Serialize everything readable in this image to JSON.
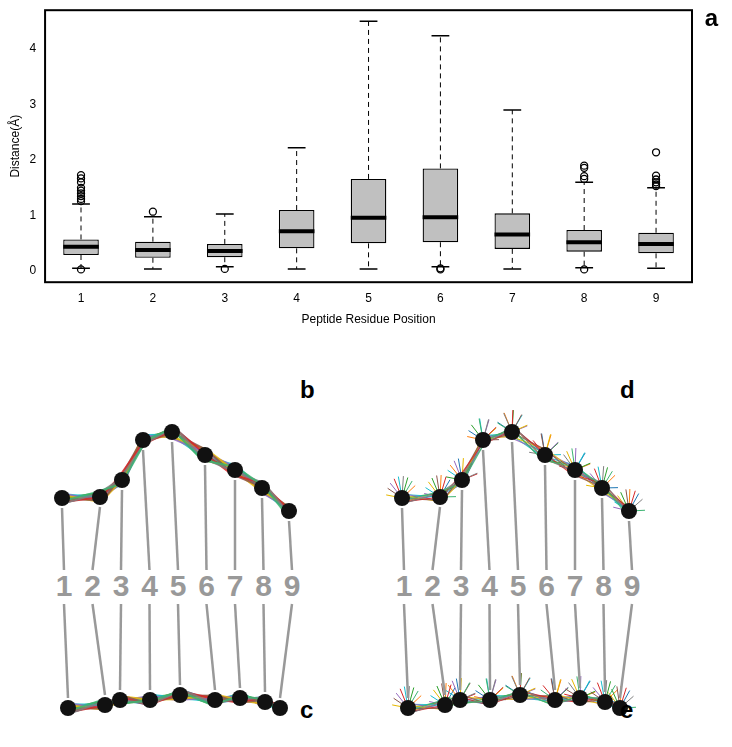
{
  "chart_data": {
    "type": "boxplot",
    "panel": "a",
    "x_label": "Peptide Residue Position",
    "y_label": "Distance(Å)",
    "categories": [
      "1",
      "2",
      "3",
      "4",
      "5",
      "6",
      "7",
      "8",
      "9"
    ],
    "color": "#c0c0c0",
    "grid": false,
    "ylim": [
      -0.2,
      4.7
    ],
    "yticks": [
      0,
      1,
      2,
      3,
      4
    ],
    "boxes": [
      {
        "low": 0.05,
        "q1": 0.29,
        "median": 0.44,
        "q3": 0.57,
        "high": 1.21,
        "outliers": [
          0.03,
          1.26,
          1.3,
          1.35,
          1.4,
          1.45,
          1.5,
          1.6,
          1.67,
          1.73
        ]
      },
      {
        "low": 0.04,
        "q1": 0.24,
        "median": 0.38,
        "q3": 0.53,
        "high": 0.98,
        "outliers": [
          1.07
        ]
      },
      {
        "low": 0.08,
        "q1": 0.25,
        "median": 0.36,
        "q3": 0.49,
        "high": 1.03,
        "outliers": [
          0.04
        ]
      },
      {
        "low": 0.04,
        "q1": 0.41,
        "median": 0.72,
        "q3": 1.1,
        "high": 2.22,
        "outliers": []
      },
      {
        "low": 0.04,
        "q1": 0.5,
        "median": 0.96,
        "q3": 1.66,
        "high": 4.5,
        "outliers": []
      },
      {
        "low": 0.08,
        "q1": 0.52,
        "median": 0.97,
        "q3": 1.85,
        "high": 4.24,
        "outliers": [
          0.03,
          0.05
        ]
      },
      {
        "low": 0.04,
        "q1": 0.4,
        "median": 0.66,
        "q3": 1.04,
        "high": 2.9,
        "outliers": []
      },
      {
        "low": 0.06,
        "q1": 0.35,
        "median": 0.52,
        "q3": 0.74,
        "high": 1.6,
        "outliers": [
          0.03,
          1.66,
          1.71,
          1.86,
          1.9
        ]
      },
      {
        "low": 0.05,
        "q1": 0.32,
        "median": 0.49,
        "q3": 0.69,
        "high": 1.5,
        "outliers": [
          1.53,
          1.56,
          1.6,
          1.65,
          1.72,
          2.14
        ]
      }
    ]
  },
  "structure_panels": {
    "labels": [
      "b",
      "c",
      "d",
      "e"
    ],
    "residue_labels": [
      "1",
      "2",
      "3",
      "4",
      "5",
      "6",
      "7",
      "8",
      "9"
    ]
  }
}
